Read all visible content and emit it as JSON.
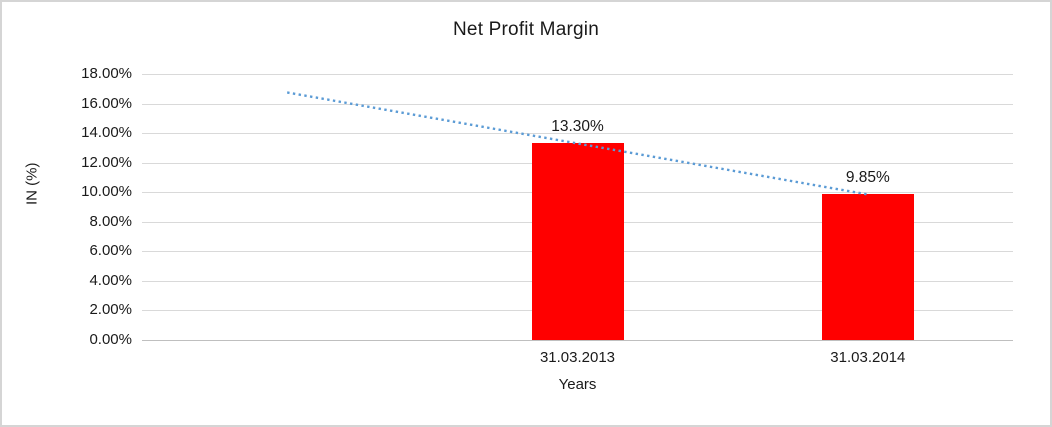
{
  "chart_data": {
    "type": "bar",
    "title": "Net Profit Margin",
    "xlabel": "Years",
    "ylabel": "IN (%)",
    "categories": [
      "31.03.2013",
      "31.03.2014"
    ],
    "values": [
      13.3,
      9.85
    ],
    "data_labels": [
      "13.30%",
      "9.85%"
    ],
    "ylim": [
      0,
      18
    ],
    "ytick_step": 2,
    "ytick_labels": [
      "0.00%",
      "2.00%",
      "4.00%",
      "6.00%",
      "8.00%",
      "10.00%",
      "12.00%",
      "14.00%",
      "16.00%",
      "18.00%"
    ],
    "grid": true,
    "legend": "none",
    "bar_color": "#FF0000",
    "trendline": {
      "type": "linear",
      "style": "dotted",
      "color": "#5B9BD5",
      "start_value": 16.75,
      "end_value": 9.85,
      "start_at_category_index": -1,
      "end_at_category_index": 1
    },
    "colors": {
      "gridline": "#D9D9D9",
      "axis_line": "#BFBFBF",
      "text": "#1A1A1A",
      "frame_border": "#D5D5D5",
      "background": "#FFFFFF"
    }
  }
}
